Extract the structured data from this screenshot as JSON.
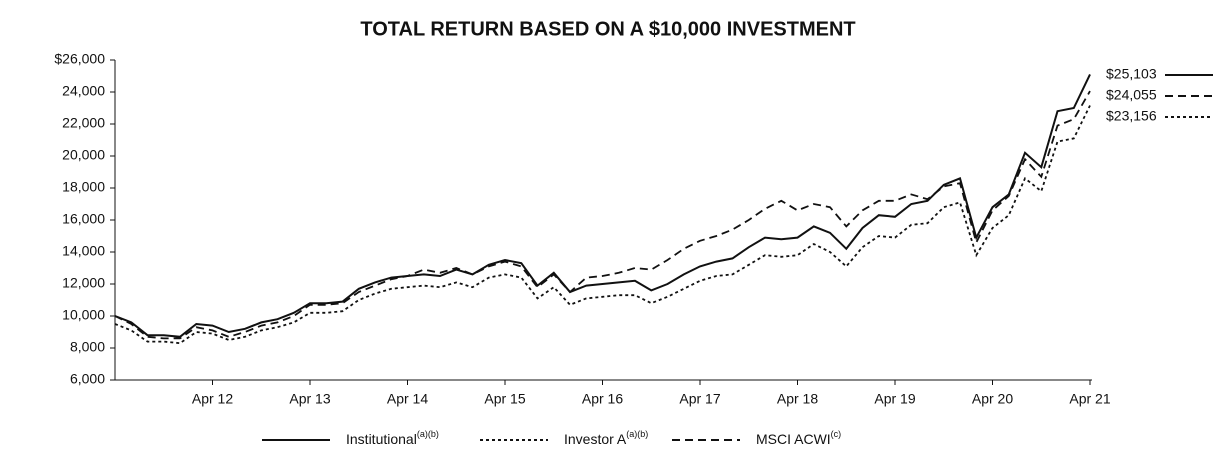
{
  "chart_data": {
    "type": "line",
    "title": "TOTAL RETURN BASED ON A $10,000 INVESTMENT",
    "x": [
      0,
      2,
      4,
      6,
      8,
      10,
      12,
      14,
      16,
      18,
      20,
      22,
      24,
      26,
      28,
      30,
      32,
      34,
      36,
      38,
      40,
      42,
      44,
      46,
      48,
      50,
      52,
      54,
      56,
      58,
      60,
      62,
      64,
      66,
      68,
      70,
      72,
      74,
      76,
      78,
      80,
      82,
      84,
      86,
      88,
      90,
      92,
      94,
      96,
      98,
      100,
      102,
      104,
      106,
      108,
      110,
      112,
      114,
      116,
      118,
      120
    ],
    "xlim": [
      0,
      120
    ],
    "xticks": [
      {
        "value": 12,
        "label": "Apr 12"
      },
      {
        "value": 24,
        "label": "Apr 13"
      },
      {
        "value": 36,
        "label": "Apr 14"
      },
      {
        "value": 48,
        "label": "Apr 15"
      },
      {
        "value": 60,
        "label": "Apr 16"
      },
      {
        "value": 72,
        "label": "Apr 17"
      },
      {
        "value": 84,
        "label": "Apr 18"
      },
      {
        "value": 96,
        "label": "Apr 19"
      },
      {
        "value": 108,
        "label": "Apr 20"
      },
      {
        "value": 120,
        "label": "Apr 21"
      }
    ],
    "ylim": [
      6000,
      26000
    ],
    "yticks": [
      {
        "value": 6000,
        "label": "6,000"
      },
      {
        "value": 8000,
        "label": "8,000"
      },
      {
        "value": 10000,
        "label": "10,000"
      },
      {
        "value": 12000,
        "label": "12,000"
      },
      {
        "value": 14000,
        "label": "14,000"
      },
      {
        "value": 16000,
        "label": "16,000"
      },
      {
        "value": 18000,
        "label": "18,000"
      },
      {
        "value": 20000,
        "label": "20,000"
      },
      {
        "value": 22000,
        "label": "22,000"
      },
      {
        "value": 24000,
        "label": "24,000"
      },
      {
        "value": 26000,
        "label": "$26,000"
      }
    ],
    "series": [
      {
        "name": "Institutional",
        "name_note": "(a)(b)",
        "color": "#111111",
        "style": "solid",
        "end_label": "$25,103",
        "values": [
          10000,
          9600,
          8800,
          8800,
          8700,
          9500,
          9400,
          9000,
          9200,
          9600,
          9800,
          10200,
          10800,
          10800,
          10900,
          11700,
          12100,
          12400,
          12500,
          12600,
          12500,
          12900,
          12600,
          13200,
          13500,
          13300,
          11900,
          12700,
          11500,
          11900,
          12000,
          12100,
          12200,
          11600,
          12000,
          12600,
          13100,
          13400,
          13600,
          14300,
          14900,
          14800,
          14900,
          15600,
          15200,
          14200,
          15500,
          16300,
          16200,
          17000,
          17200,
          18200,
          18600,
          14900,
          16800,
          17600,
          20200,
          19300,
          22800,
          23000,
          25103
        ]
      },
      {
        "name": "Investor A",
        "name_note": "(a)(b)",
        "color": "#111111",
        "style": "dotted",
        "end_label": "$23,156",
        "values": [
          9500,
          9100,
          8400,
          8400,
          8300,
          9000,
          8900,
          8500,
          8700,
          9100,
          9300,
          9600,
          10200,
          10200,
          10300,
          11000,
          11400,
          11700,
          11800,
          11900,
          11800,
          12100,
          11800,
          12400,
          12600,
          12400,
          11100,
          11800,
          10700,
          11100,
          11200,
          11300,
          11300,
          10800,
          11200,
          11700,
          12200,
          12500,
          12600,
          13200,
          13800,
          13700,
          13800,
          14500,
          14000,
          13100,
          14300,
          15000,
          14900,
          15700,
          15800,
          16800,
          17100,
          13800,
          15500,
          16300,
          18600,
          17800,
          20900,
          21100,
          23156
        ]
      },
      {
        "name": "MSCI ACWI",
        "name_note": "(c)",
        "color": "#111111",
        "style": "dashed",
        "end_label": "$24,055",
        "values": [
          10000,
          9500,
          8700,
          8600,
          8600,
          9300,
          9100,
          8700,
          9000,
          9400,
          9600,
          10000,
          10700,
          10700,
          10800,
          11500,
          11900,
          12300,
          12500,
          12900,
          12700,
          13000,
          12600,
          13100,
          13400,
          13100,
          11800,
          12600,
          11500,
          12400,
          12500,
          12700,
          13000,
          12900,
          13500,
          14200,
          14700,
          15000,
          15400,
          16000,
          16700,
          17200,
          16600,
          17000,
          16800,
          15600,
          16600,
          17200,
          17200,
          17600,
          17300,
          18100,
          18300,
          14600,
          16600,
          17500,
          19800,
          18700,
          21900,
          22300,
          24055
        ]
      }
    ]
  }
}
